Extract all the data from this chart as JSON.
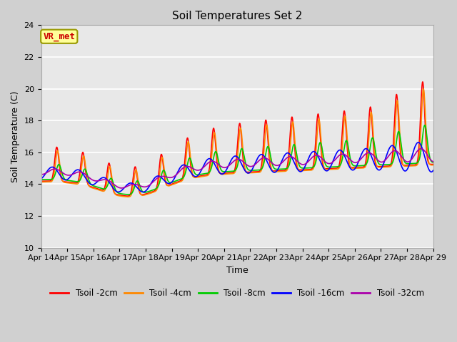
{
  "title": "Soil Temperatures Set 2",
  "xlabel": "Time",
  "ylabel": "Soil Temperature (C)",
  "ylim": [
    10,
    24
  ],
  "yticks": [
    10,
    12,
    14,
    16,
    18,
    20,
    22,
    24
  ],
  "annotation_text": "VR_met",
  "annotation_color": "#cc0000",
  "annotation_bg": "#ffff99",
  "annotation_border": "#999900",
  "series_colors": {
    "Tsoil -2cm": "#ff0000",
    "Tsoil -4cm": "#ff8800",
    "Tsoil -8cm": "#00cc00",
    "Tsoil -16cm": "#0000ff",
    "Tsoil -32cm": "#aa00aa"
  },
  "plot_bg": "#e8e8e8",
  "fig_bg": "#d0d0d0",
  "line_width": 1.2,
  "n_days": 15,
  "x_tick_labels": [
    "Apr 14",
    "Apr 15",
    "Apr 16",
    "Apr 17",
    "Apr 18",
    "Apr 19",
    "Apr 20",
    "Apr 21",
    "Apr 22",
    "Apr 23",
    "Apr 24",
    "Apr 25",
    "Apr 26",
    "Apr 27",
    "Apr 28",
    "Apr 29"
  ]
}
